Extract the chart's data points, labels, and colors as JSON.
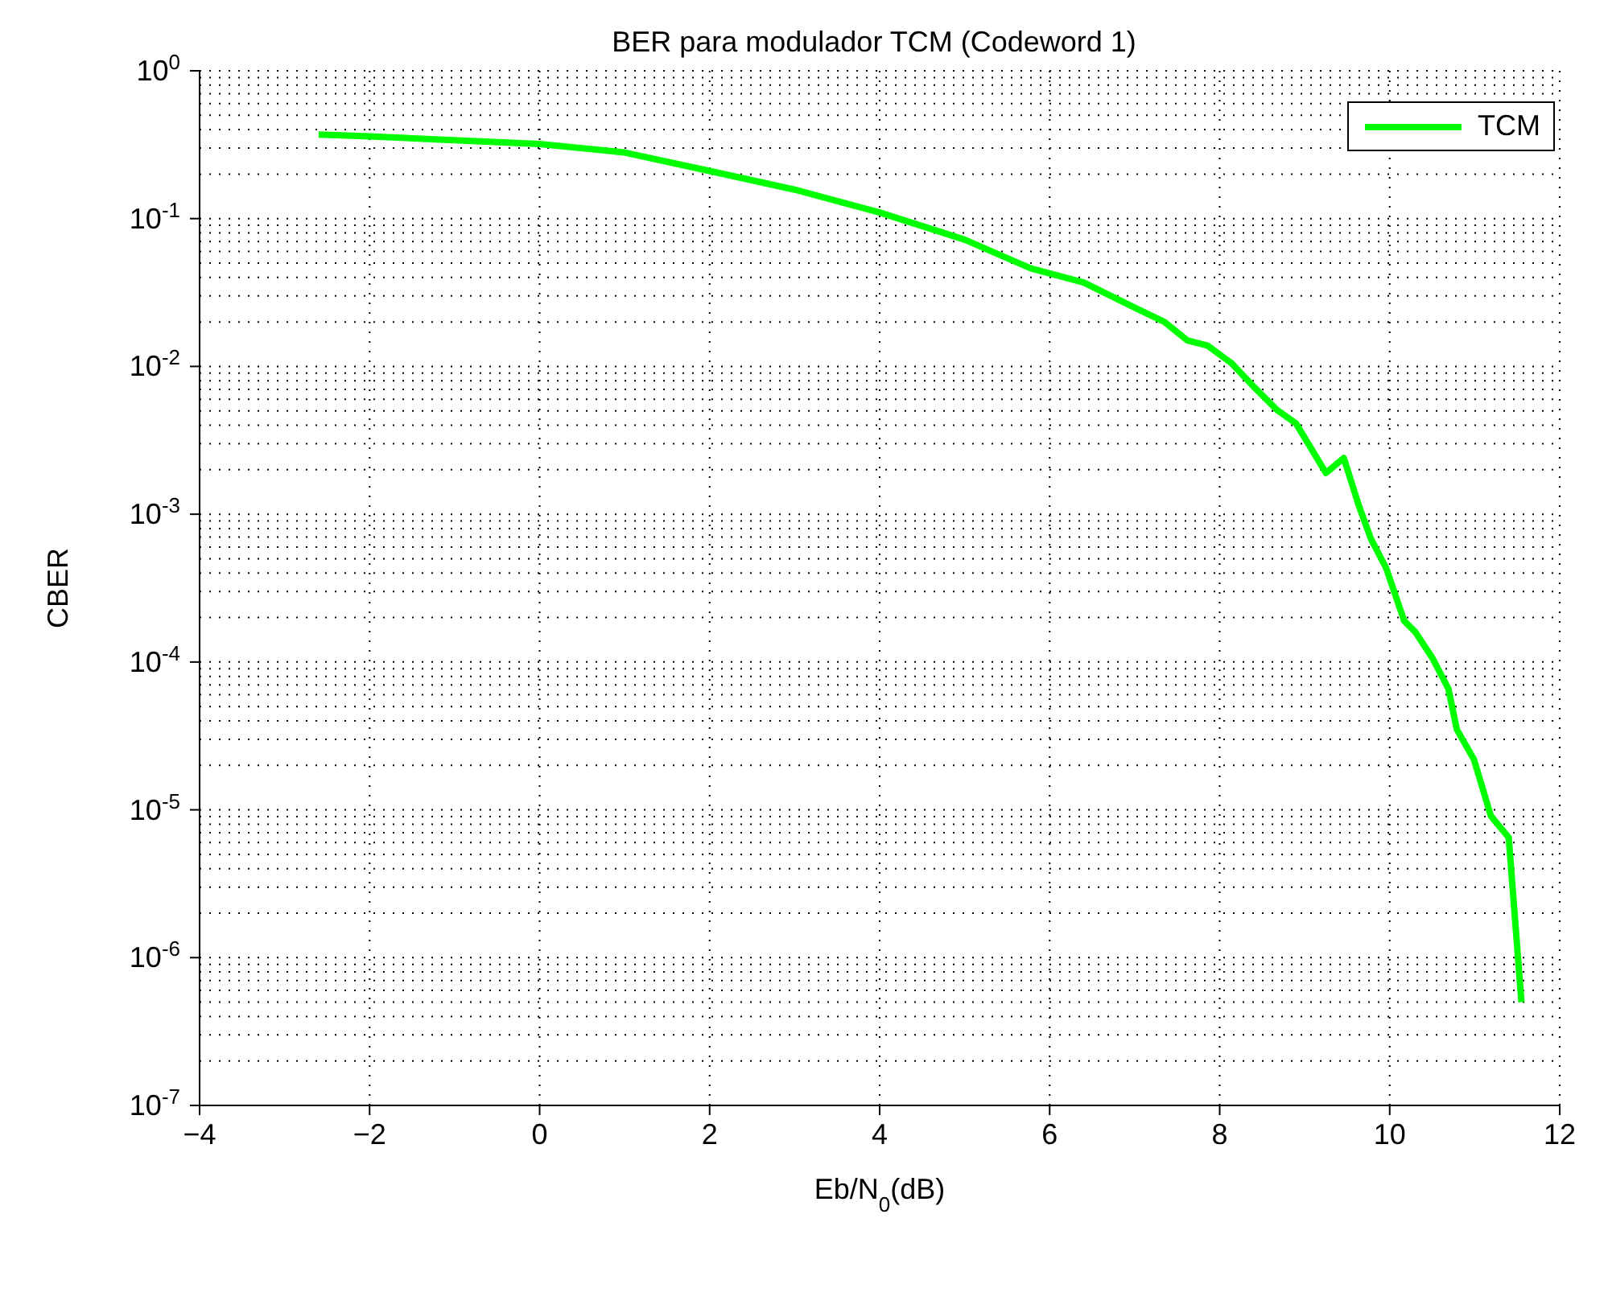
{
  "chart_data": {
    "type": "line",
    "title": "BER para modulador TCM (Codeword 1)",
    "xlabel": "Eb/N$_{0}$(dB)",
    "ylabel": "CBER",
    "x": [
      -2.6,
      -2,
      0,
      1,
      2,
      3,
      4,
      5,
      5.78,
      6.4,
      7,
      7.35,
      7.62,
      7.86,
      8.14,
      8.41,
      8.67,
      8.9,
      9.25,
      9.46,
      9.64,
      9.78,
      9.96,
      10.17,
      10.3,
      10.5,
      10.69,
      10.79,
      10.99,
      11.19,
      11.4,
      11.55
    ],
    "series": [
      {
        "name": "TCM",
        "color": "#00ff00",
        "values": [
          0.37,
          0.36,
          0.32,
          0.28,
          0.21,
          0.157,
          0.11,
          0.072,
          0.046,
          0.037,
          0.025,
          0.02,
          0.015,
          0.0138,
          0.0105,
          0.0072,
          0.0051,
          0.0041,
          0.0019,
          0.0024,
          0.00113,
          0.00068,
          0.00043,
          0.00019,
          0.00016,
          0.000107,
          6.6e-05,
          3.5e-05,
          2.2e-05,
          9.1e-06,
          6.5e-06,
          5e-07
        ]
      }
    ],
    "xlim": [
      -4,
      12
    ],
    "xticks": [
      {
        "value": -4,
        "label": "−4"
      },
      {
        "value": -2,
        "label": "−2"
      },
      0,
      2,
      4,
      6,
      8,
      10,
      12
    ],
    "ylim": [
      1e-07,
      1
    ],
    "yticks": [
      {
        "value": 1e-07,
        "label": "10$^{-7}$"
      },
      {
        "value": 1e-06,
        "label": "10$^{-6}$"
      },
      {
        "value": 1e-05,
        "label": "10$^{-5}$"
      },
      {
        "value": 0.0001,
        "label": "10$^{-4}$"
      },
      {
        "value": 0.001,
        "label": "10$^{-3}$"
      },
      {
        "value": 0.01,
        "label": "10$^{-2}$"
      },
      {
        "value": 0.1,
        "label": "10$^{-1}$"
      },
      {
        "value": 1,
        "label": "10$^{0}$"
      }
    ],
    "log": "y",
    "grid": true,
    "legend": "top right",
    "marker": "none",
    "line_style": "solid"
  }
}
